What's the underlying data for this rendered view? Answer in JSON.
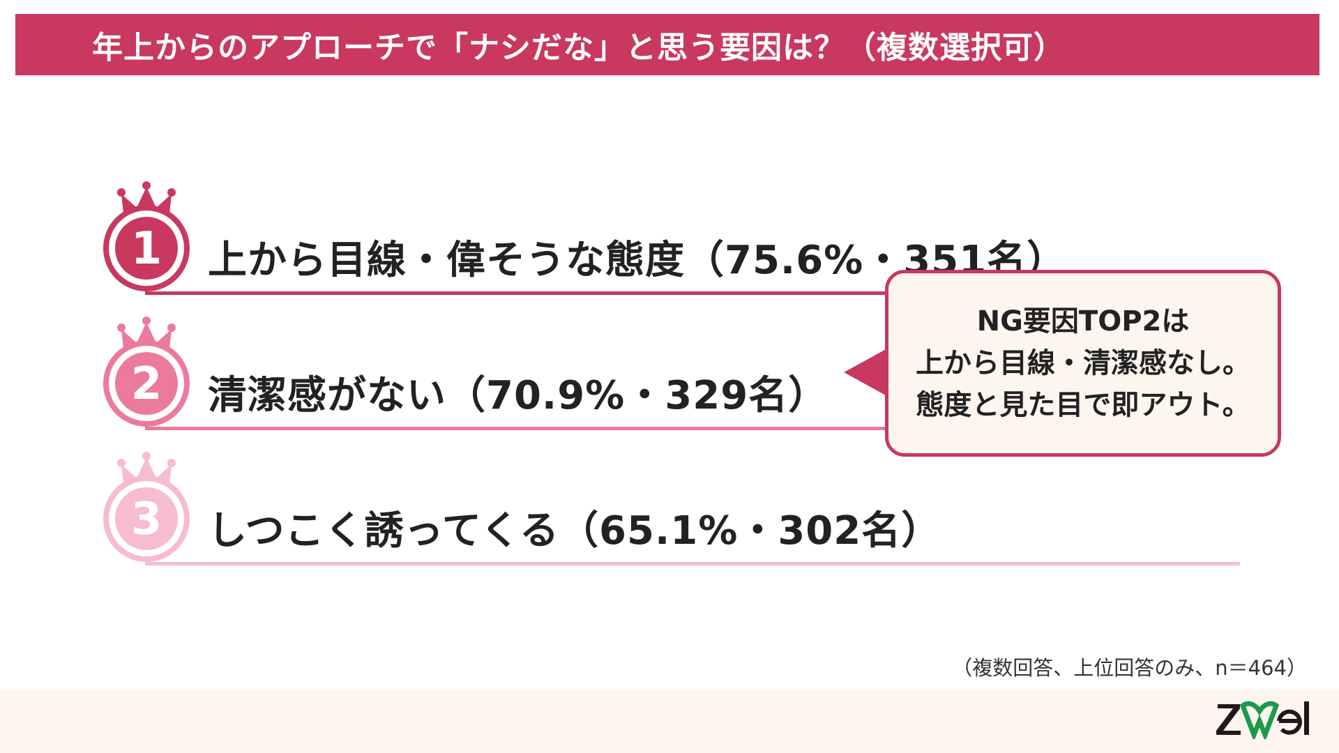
{
  "title": "年上からのアプローチで「ナシだな」と思う要因は？（複数選択可）",
  "colors": {
    "accent": "#c8385f",
    "rank1": "#c8385f",
    "rank2": "#ec7a9b",
    "rank3": "#f7bccd",
    "footer": "#fdf5ef",
    "logo_green": "#1a9a4a"
  },
  "ranking": [
    {
      "rank": "1",
      "text": "上から目線・偉そうな態度（75.6%・351名）",
      "percent": 75.6,
      "count": 351
    },
    {
      "rank": "2",
      "text": "清潔感がない（70.9%・329名）",
      "percent": 70.9,
      "count": 329
    },
    {
      "rank": "3",
      "text": "しつこく誘ってくる（65.1%・302名）",
      "percent": 65.1,
      "count": 302
    }
  ],
  "callout": {
    "lines": [
      "NG要因TOP2は",
      "上から目線・清潔感なし。",
      "態度と見た目で即アウト。"
    ]
  },
  "note": "（複数回答、上位回答のみ、n＝464）",
  "logo": "zwei"
}
